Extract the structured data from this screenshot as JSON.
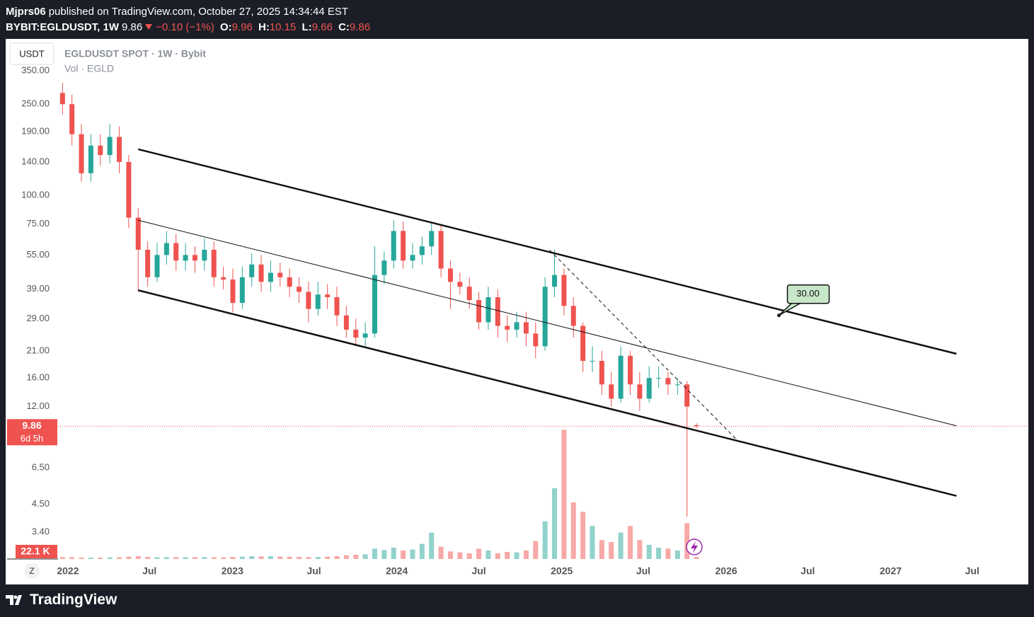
{
  "header": {
    "author": "Mjprs06",
    "published": "published on TradingView.com, October 27, 2025 14:34:44 EST",
    "symbol": "BYBIT:EGLDUSDT, 1W",
    "change": "−0.10 (−1%)",
    "ohlc_labels": [
      "O:",
      "H:",
      "L:",
      "C:"
    ]
  },
  "footer": {
    "brand": "TradingView"
  },
  "chart_data": {
    "type": "candlestick",
    "title": "EGLDUSDT SPOT · 1W · Bybit",
    "subtitle": "Vol · EGLD",
    "currency": "USDT",
    "z_button": "Z",
    "countdown": "6d 5h",
    "x": [
      "2021-12-20",
      "2022-01-10",
      "2022-01-31",
      "2022-02-21",
      "2022-03-14",
      "2022-04-04",
      "2022-04-25",
      "2022-05-16",
      "2022-06-06",
      "2022-06-27",
      "2022-07-18",
      "2022-08-08",
      "2022-08-29",
      "2022-09-19",
      "2022-10-10",
      "2022-10-31",
      "2022-11-21",
      "2022-12-12",
      "2023-01-02",
      "2023-01-23",
      "2023-02-13",
      "2023-03-06",
      "2023-03-27",
      "2023-04-17",
      "2023-05-08",
      "2023-05-29",
      "2023-06-19",
      "2023-07-10",
      "2023-07-31",
      "2023-08-21",
      "2023-09-11",
      "2023-10-02",
      "2023-10-23",
      "2023-11-13",
      "2023-12-04",
      "2023-12-25",
      "2024-01-15",
      "2024-02-05",
      "2024-02-26",
      "2024-03-18",
      "2024-04-08",
      "2024-04-29",
      "2024-05-20",
      "2024-06-10",
      "2024-07-01",
      "2024-07-22",
      "2024-08-12",
      "2024-09-02",
      "2024-09-23",
      "2024-10-14",
      "2024-11-04",
      "2024-11-25",
      "2024-12-16",
      "2025-01-06",
      "2025-01-27",
      "2025-02-17",
      "2025-03-10",
      "2025-03-31",
      "2025-04-21",
      "2025-05-12",
      "2025-06-02",
      "2025-06-23",
      "2025-07-14",
      "2025-08-04",
      "2025-08-25",
      "2025-09-15",
      "2025-10-06",
      "2025-10-27"
    ],
    "open": [
      280,
      250,
      185,
      125,
      165,
      150,
      180,
      140,
      80,
      58,
      44,
      55,
      62,
      52,
      55,
      52,
      58,
      44,
      43,
      34,
      44,
      50,
      42,
      46,
      44,
      40,
      38,
      32,
      37,
      36,
      30,
      26,
      24,
      25,
      45,
      52,
      70,
      52,
      55,
      60,
      70,
      48,
      42,
      40,
      35,
      28,
      36,
      27,
      26,
      28,
      25,
      22,
      40,
      45,
      33,
      27,
      19,
      19,
      15,
      13,
      20,
      15,
      13,
      16,
      16,
      15,
      15,
      9.96
    ],
    "high": [
      310,
      275,
      205,
      185,
      185,
      205,
      200,
      150,
      88,
      63,
      62,
      70,
      68,
      62,
      60,
      65,
      63,
      49,
      48,
      49,
      56,
      55,
      52,
      51,
      48,
      44,
      42,
      42,
      41,
      40,
      33,
      29,
      28,
      60,
      57,
      78,
      77,
      62,
      66,
      77,
      75,
      52,
      46,
      44,
      38,
      40,
      39,
      30,
      31,
      31,
      28,
      44,
      58,
      48,
      36,
      28,
      22,
      21,
      17,
      22,
      21,
      17,
      18,
      18,
      17,
      16,
      15.5,
      10.15
    ],
    "low": [
      225,
      165,
      115,
      115,
      135,
      138,
      125,
      72,
      38,
      40,
      42,
      50,
      47,
      47,
      46,
      47,
      40,
      39,
      31,
      32,
      40,
      38,
      38,
      40,
      36,
      34,
      28,
      30,
      32,
      27,
      24,
      22,
      22,
      24,
      41,
      48,
      48,
      48,
      50,
      55,
      44,
      32,
      37,
      32,
      26,
      26,
      24,
      23,
      24,
      22,
      19.5,
      21,
      36,
      30,
      24,
      17,
      17,
      13.5,
      12,
      12.5,
      13.5,
      11.5,
      12.5,
      14.5,
      13.5,
      13.5,
      3.97,
      9.66
    ],
    "close": [
      250,
      185,
      125,
      165,
      150,
      180,
      140,
      80,
      58,
      44,
      55,
      62,
      52,
      55,
      52,
      58,
      44,
      43,
      34,
      44,
      50,
      42,
      46,
      44,
      40,
      38,
      32,
      37,
      36,
      30,
      26,
      24,
      25,
      45,
      52,
      70,
      52,
      55,
      60,
      70,
      48,
      42,
      40,
      35,
      28,
      36,
      27,
      26,
      28,
      25,
      22,
      40,
      45,
      33,
      27,
      19,
      19,
      15,
      13,
      20,
      15,
      13,
      16,
      16,
      15,
      15,
      12,
      9.86
    ],
    "volume": [
      20000,
      18000,
      15000,
      14000,
      15000,
      16000,
      18000,
      25000,
      30000,
      22000,
      18000,
      20000,
      19000,
      18000,
      20000,
      20000,
      18000,
      17000,
      22000,
      25000,
      30000,
      28000,
      30000,
      26000,
      24000,
      22000,
      20000,
      22000,
      24000,
      30000,
      40000,
      45000,
      50000,
      110000,
      95000,
      120000,
      90000,
      100000,
      160000,
      280000,
      130000,
      80000,
      70000,
      60000,
      110000,
      90000,
      60000,
      75000,
      70000,
      90000,
      190000,
      400000,
      750000,
      1370000,
      600000,
      500000,
      350000,
      200000,
      180000,
      280000,
      350000,
      200000,
      150000,
      120000,
      110000,
      90000,
      380000,
      22100
    ],
    "last_volume_label": "22.1 K",
    "up_color": "#26a69a",
    "down_color": "#ef5350",
    "log_scale": true,
    "ylim": [
      2.6,
      478
    ],
    "yticks": [
      {
        "value": 350,
        "label": "350.00"
      },
      {
        "value": 250,
        "label": "250.00"
      },
      {
        "value": 190,
        "label": "190.00"
      },
      {
        "value": 140,
        "label": "140.00"
      },
      {
        "value": 100,
        "label": "100.00"
      },
      {
        "value": 75,
        "label": "75.00"
      },
      {
        "value": 55,
        "label": "55.00"
      },
      {
        "value": 39,
        "label": "39.00"
      },
      {
        "value": 29,
        "label": "29.00"
      },
      {
        "value": 21,
        "label": "21.00"
      },
      {
        "value": 16,
        "label": "16.00"
      },
      {
        "value": 12,
        "label": "12.00"
      },
      {
        "value": 6.5,
        "label": "6.50"
      },
      {
        "value": 4.5,
        "label": "4.50"
      },
      {
        "value": 3.4,
        "label": "3.40"
      }
    ],
    "volume_ylim": [
      0,
      1500000
    ],
    "xlim": [
      "2021-08-19",
      "2027-11-01"
    ],
    "xticks": [
      {
        "value": "2022-01",
        "label": "2022"
      },
      {
        "value": "2022-07",
        "label": "Jul"
      },
      {
        "value": "2023-01",
        "label": "2023"
      },
      {
        "value": "2023-07",
        "label": "Jul"
      },
      {
        "value": "2024-01",
        "label": "2024"
      },
      {
        "value": "2024-07",
        "label": "Jul"
      },
      {
        "value": "2025-01",
        "label": "2025"
      },
      {
        "value": "2025-07",
        "label": "Jul"
      },
      {
        "value": "2026-01",
        "label": "2026"
      },
      {
        "value": "2026-07",
        "label": "Jul"
      },
      {
        "value": "2027-01",
        "label": "2027"
      },
      {
        "value": "2027-07",
        "label": "Jul"
      }
    ],
    "trendlines": [
      {
        "x": [
          "2022-06-06",
          "2027-05-27"
        ],
        "y": [
          159,
          20.4
        ],
        "style": "thick"
      },
      {
        "x": [
          "2022-06-06",
          "2027-05-27"
        ],
        "y": [
          78,
          9.9
        ],
        "style": "thin"
      },
      {
        "x": [
          "2022-06-06",
          "2027-05-27"
        ],
        "y": [
          38.6,
          4.9
        ],
        "style": "thick"
      },
      {
        "x": [
          "2024-12-05",
          "2026-01-23"
        ],
        "y": [
          57.8,
          8.67
        ],
        "style": "dashed"
      }
    ],
    "callout": {
      "x": "2026-04-28",
      "y": 30,
      "label": "30.00"
    }
  }
}
